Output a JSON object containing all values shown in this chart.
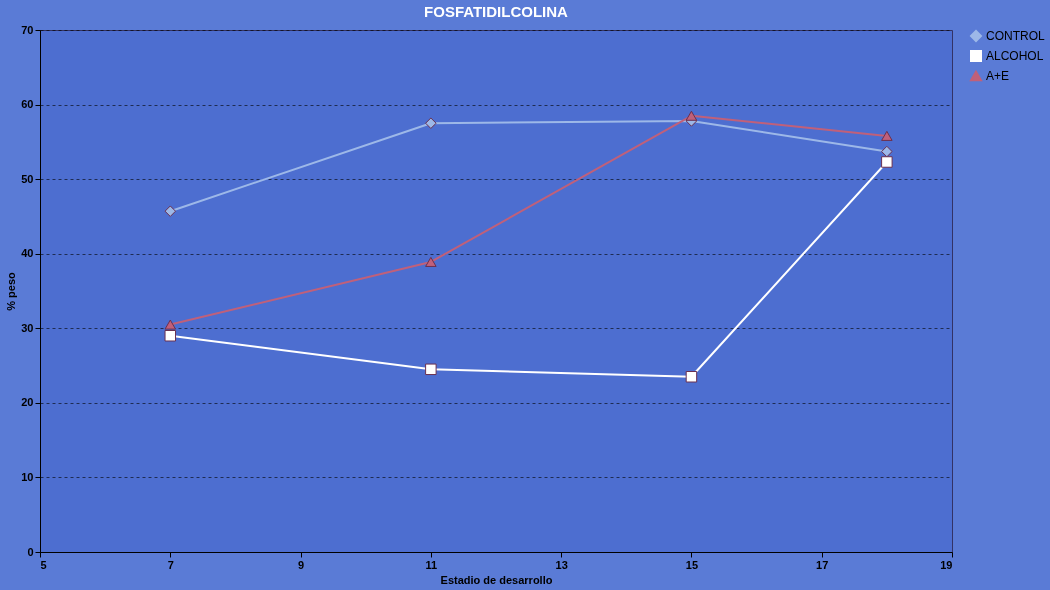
{
  "chart_data": {
    "type": "line",
    "title": "FOSFATIDILCOLINA",
    "xlabel": "Estadio de desarrollo",
    "ylabel": "% peso",
    "x": [
      7,
      11,
      15,
      18
    ],
    "series": [
      {
        "name": "CONTROL",
        "color": "#9db8e8",
        "marker": "diamond",
        "values": [
          45.7,
          57.5,
          57.8,
          53.7
        ]
      },
      {
        "name": "ALCOHOL",
        "color": "#ffffff",
        "marker": "square",
        "values": [
          29.0,
          24.5,
          23.5,
          52.3
        ]
      },
      {
        "name": "A+E",
        "color": "#c0607a",
        "marker": "triangle",
        "values": [
          30.5,
          38.9,
          58.5,
          55.8
        ]
      }
    ],
    "xlim": [
      5,
      19
    ],
    "xticks": [
      5,
      7,
      9,
      11,
      13,
      15,
      17,
      19
    ],
    "ylim": [
      0,
      70
    ],
    "yticks": [
      0,
      10,
      20,
      30,
      40,
      50,
      60,
      70
    ],
    "grid": "y",
    "legend": "right",
    "line_style": "solid"
  }
}
